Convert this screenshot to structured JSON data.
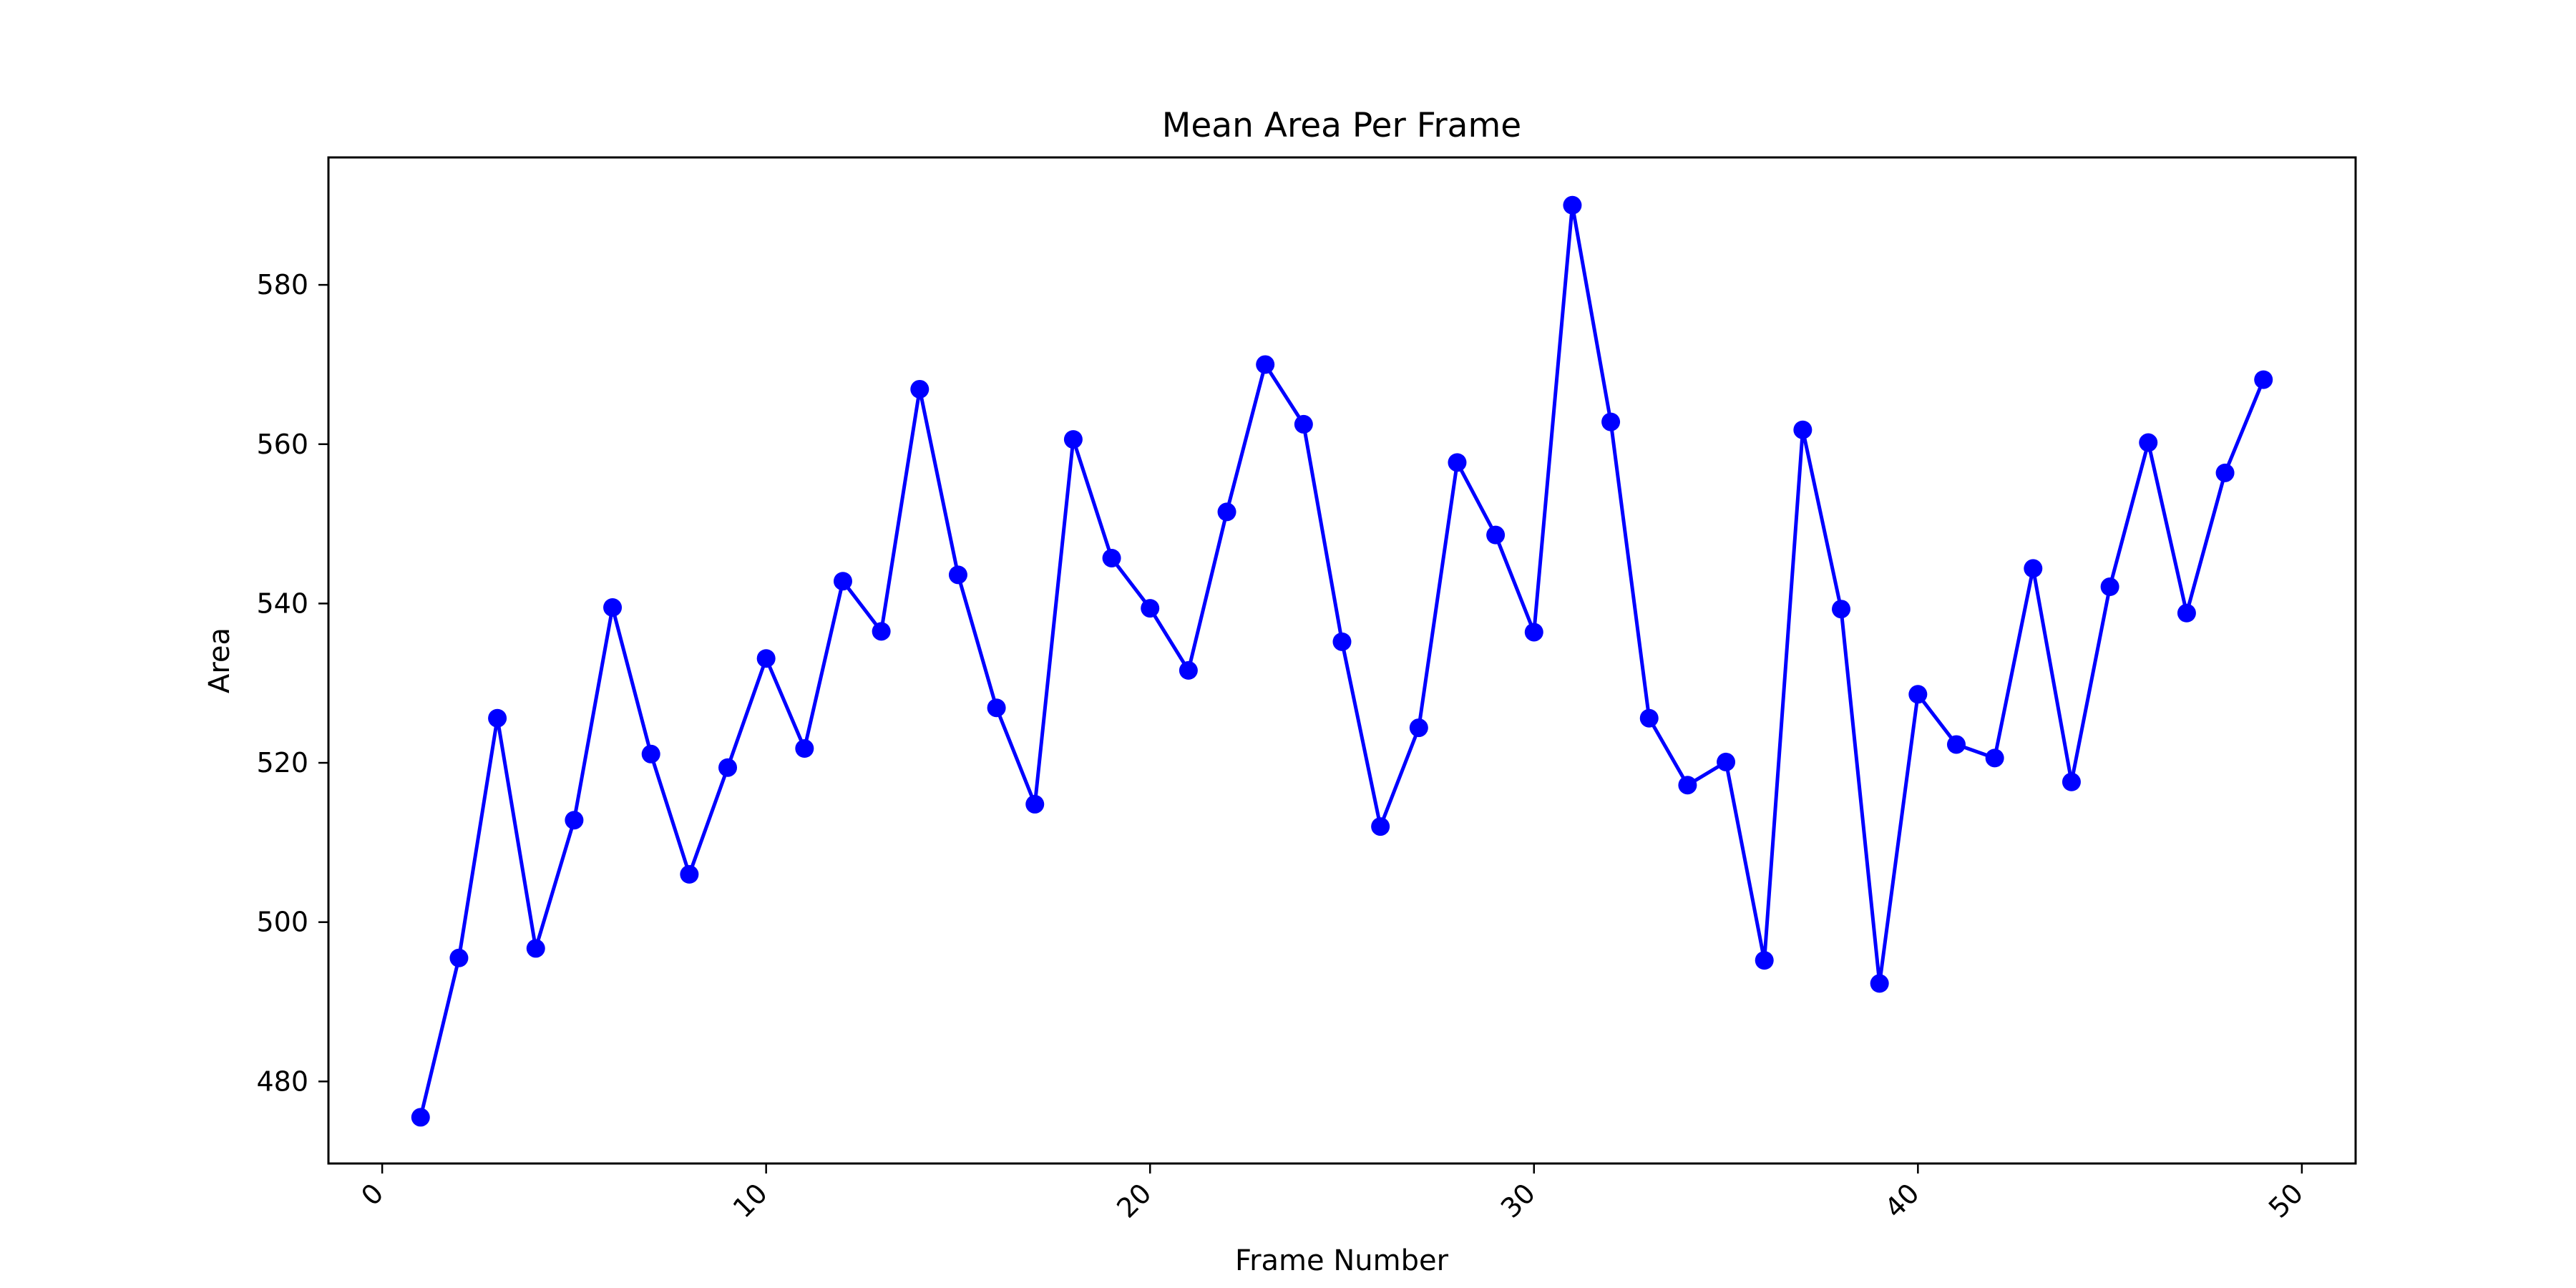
{
  "chart_data": {
    "type": "line",
    "title": "Mean Area Per Frame",
    "xlabel": "Frame Number",
    "ylabel": "Area",
    "xlim": [
      -1.4,
      51.4
    ],
    "ylim": [
      469.7,
      596.0
    ],
    "xticks": [
      "0",
      "10",
      "20",
      "30",
      "40",
      "50"
    ],
    "yticks": [
      "480",
      "500",
      "520",
      "540",
      "560",
      "580"
    ],
    "grid": false,
    "marker": "circle",
    "color": "#0000ff",
    "x": [
      1,
      2,
      3,
      4,
      5,
      6,
      7,
      8,
      9,
      10,
      11,
      12,
      13,
      14,
      15,
      16,
      17,
      18,
      19,
      20,
      21,
      22,
      23,
      24,
      25,
      26,
      27,
      28,
      29,
      30,
      31,
      32,
      33,
      34,
      35,
      36,
      37,
      38,
      39,
      40,
      41,
      42,
      43,
      44,
      45,
      46,
      47,
      48,
      49
    ],
    "y": [
      475.5,
      495.5,
      525.6,
      496.7,
      512.8,
      539.5,
      521.1,
      506.0,
      519.4,
      533.1,
      521.8,
      542.8,
      536.5,
      566.9,
      543.6,
      526.9,
      514.8,
      560.6,
      545.7,
      539.4,
      531.6,
      551.5,
      570.0,
      562.5,
      535.2,
      512.0,
      524.4,
      557.7,
      548.6,
      536.4,
      590.0,
      562.8,
      525.6,
      517.2,
      520.1,
      495.2,
      561.8,
      539.3,
      492.3,
      528.6,
      522.3,
      520.6,
      544.4,
      517.6,
      542.1,
      560.2,
      538.8,
      556.4,
      568.1
    ]
  }
}
